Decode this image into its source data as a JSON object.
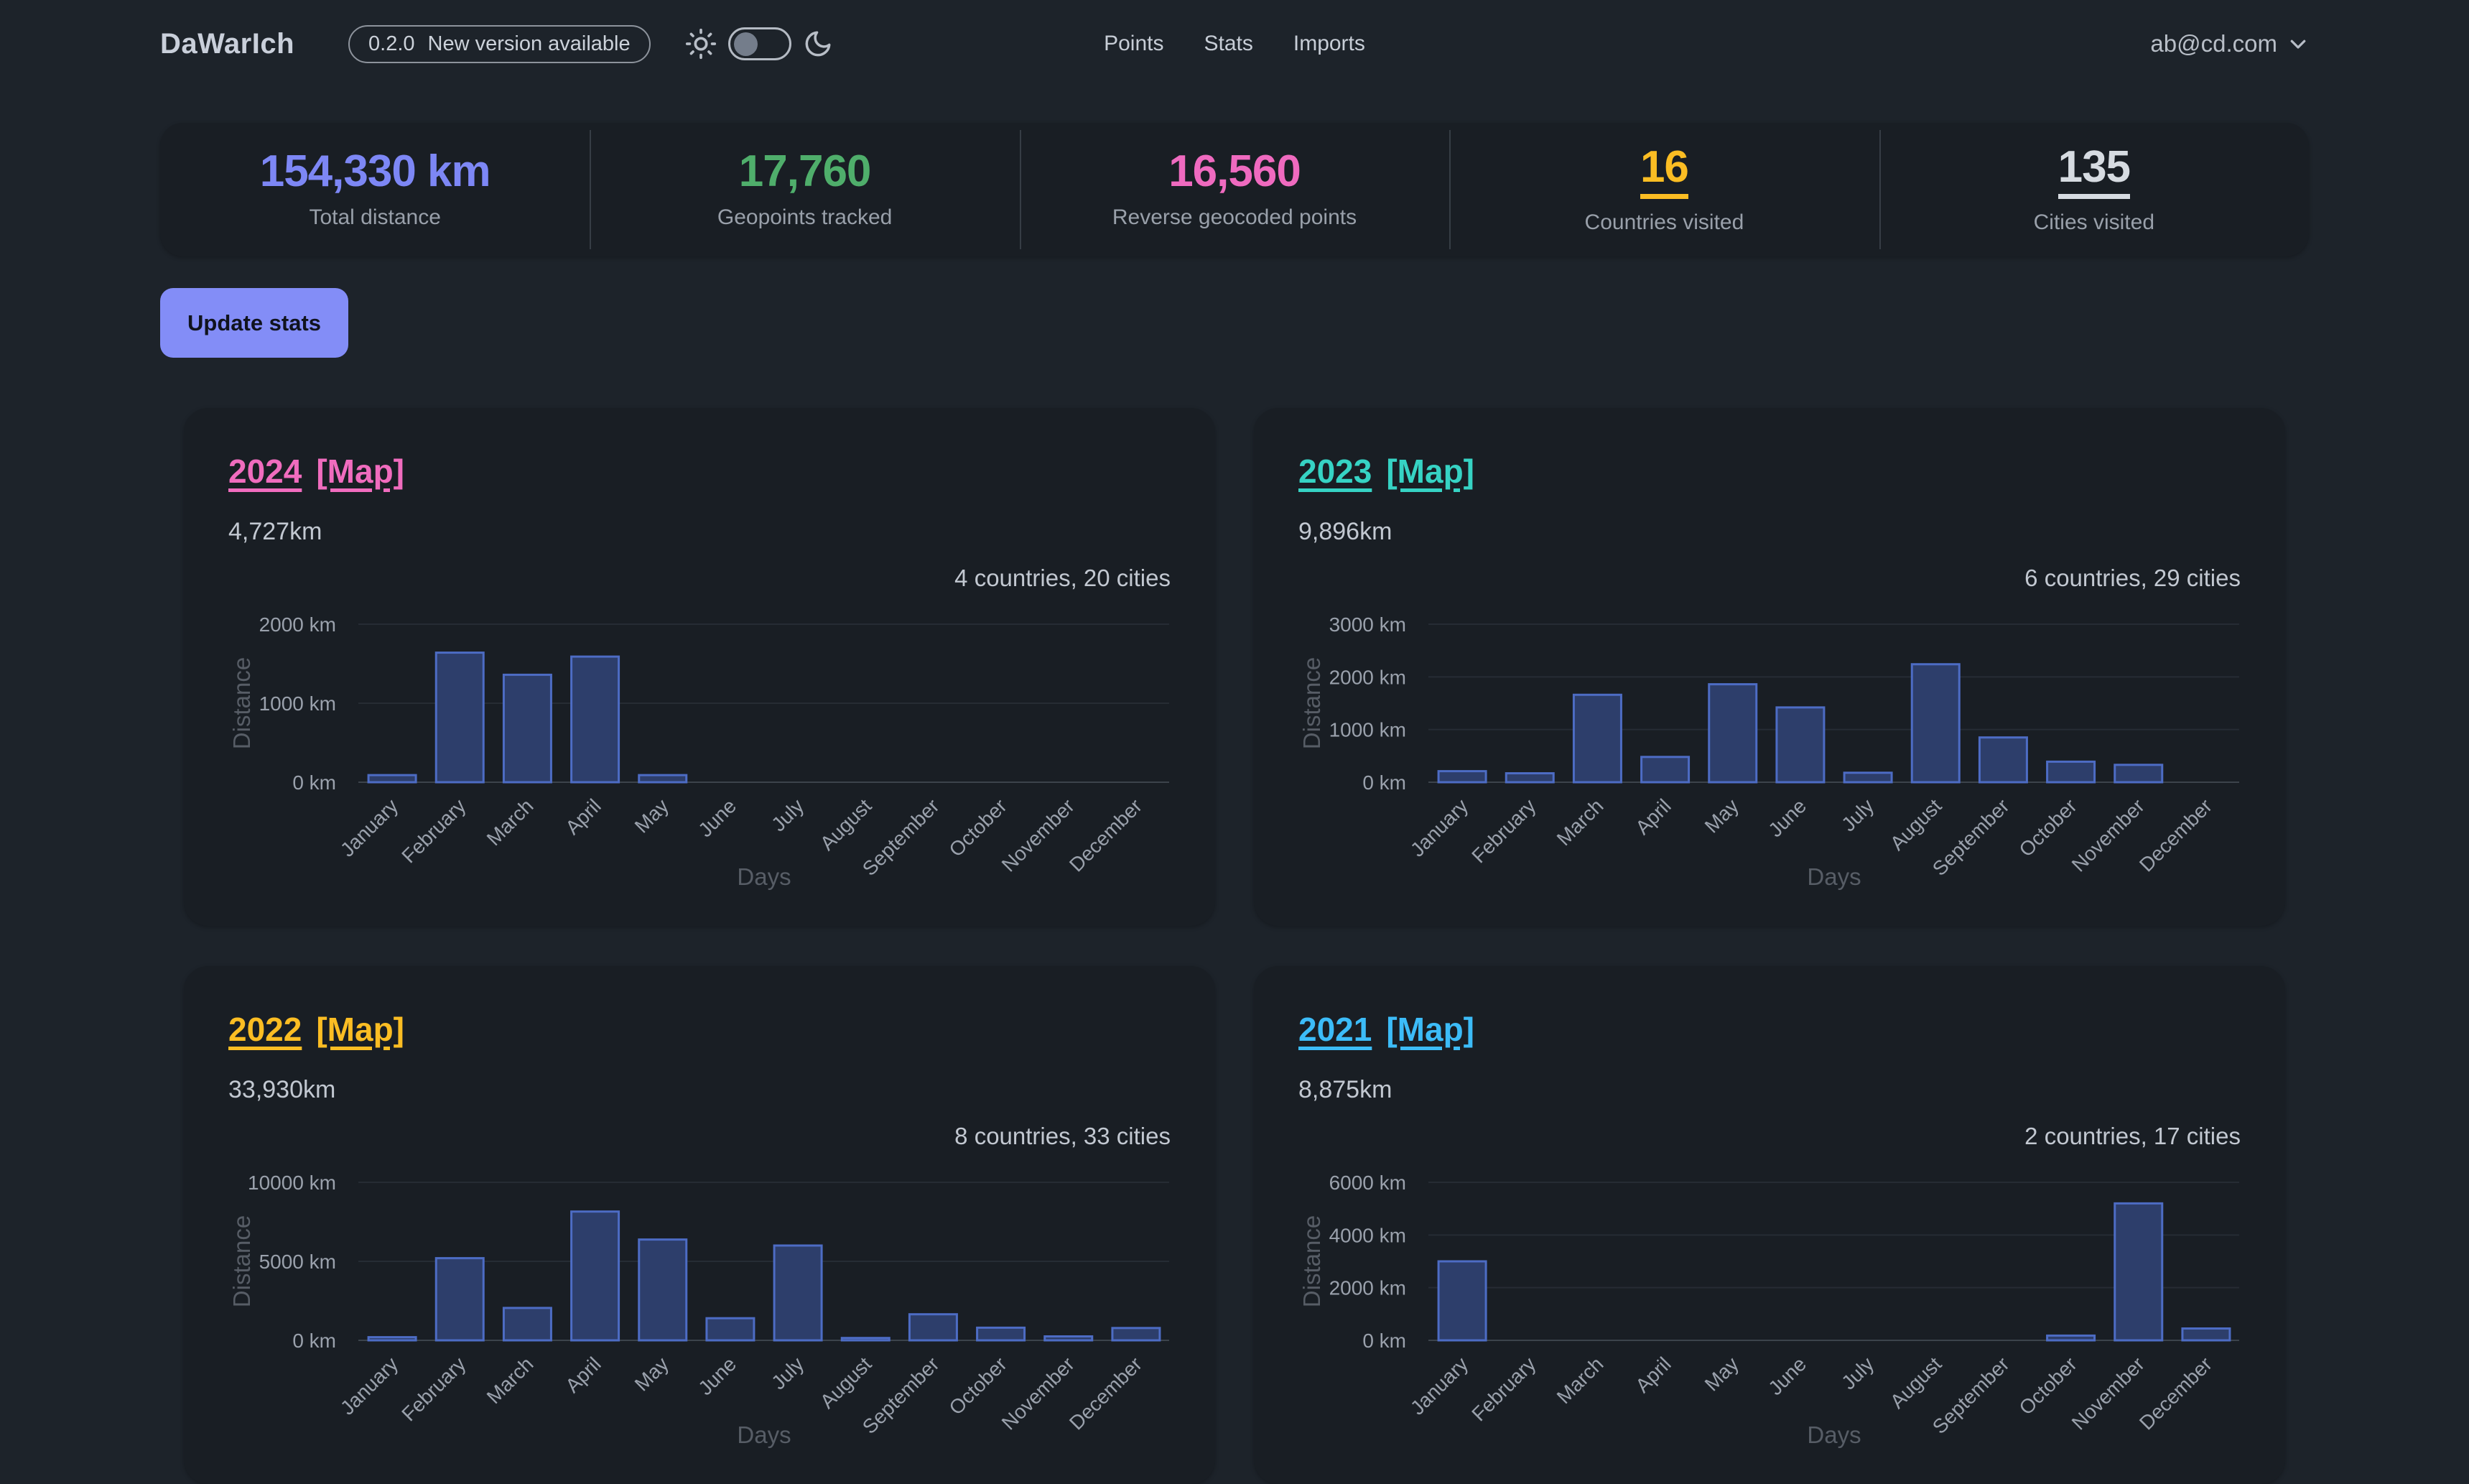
{
  "nav": {
    "brand": "DaWarIch",
    "version": "0.2.0",
    "version_note": "New version available",
    "links": [
      "Points",
      "Stats",
      "Imports"
    ],
    "user_email": "ab@cd.com",
    "icons": [
      "sun-icon",
      "moon-icon",
      "chevron-down-icon"
    ],
    "theme_toggle_state": "off"
  },
  "stats": [
    {
      "value": "154,330 km",
      "label": "Total distance",
      "color": "#7d87f5",
      "underlined": false
    },
    {
      "value": "17,760",
      "label": "Geopoints tracked",
      "color": "#4fae6b",
      "underlined": false
    },
    {
      "value": "16,560",
      "label": "Reverse geocoded points",
      "color": "#ef6abf",
      "underlined": false
    },
    {
      "value": "16",
      "label": "Countries visited",
      "color": "#fbbd23",
      "underlined": true
    },
    {
      "value": "135",
      "label": "Cities visited",
      "color": "#d6dbe1",
      "underlined": true
    }
  ],
  "actions": {
    "update_stats": "Update stats"
  },
  "theme": {
    "page_bg": "#1d232a",
    "panel_bg": "#191e24",
    "bar_fill": "#2d3e6b",
    "bar_border": "#4d6cc4",
    "grid_line": "#262c34",
    "axis_line": "#3c434b",
    "tick_text": "#9aa1ac",
    "axis_title_text": "#575d66"
  },
  "chart_data": [
    {
      "type": "bar",
      "year": "2024",
      "map_label": "[Map]",
      "year_color": "#f06cbe",
      "distance_label": "4,727km",
      "summary": "4 countries, 20 cities",
      "xlabel": "Days",
      "ylabel": "Distance",
      "categories": [
        "January",
        "February",
        "March",
        "April",
        "May",
        "June",
        "July",
        "August",
        "September",
        "October",
        "November",
        "December"
      ],
      "values": [
        90,
        1640,
        1360,
        1590,
        90,
        0,
        0,
        0,
        0,
        0,
        0,
        0
      ],
      "yticks": [
        0,
        1000,
        2000
      ],
      "ymax": 2000,
      "ytick_suffix": " km"
    },
    {
      "type": "bar",
      "year": "2023",
      "map_label": "[Map]",
      "year_color": "#36d3c4",
      "distance_label": "9,896km",
      "summary": "6 countries, 29 cities",
      "xlabel": "Days",
      "ylabel": "Distance",
      "categories": [
        "January",
        "February",
        "March",
        "April",
        "May",
        "June",
        "July",
        "August",
        "September",
        "October",
        "November",
        "December"
      ],
      "values": [
        210,
        170,
        1660,
        480,
        1860,
        1420,
        180,
        2240,
        850,
        390,
        330,
        0
      ],
      "yticks": [
        0,
        1000,
        2000,
        3000
      ],
      "ymax": 3000,
      "ytick_suffix": " km"
    },
    {
      "type": "bar",
      "year": "2022",
      "map_label": "[Map]",
      "year_color": "#fbbd23",
      "distance_label": "33,930km",
      "summary": "8 countries, 33 cities",
      "xlabel": "Days",
      "ylabel": "Distance",
      "categories": [
        "January",
        "February",
        "March",
        "April",
        "May",
        "June",
        "July",
        "August",
        "September",
        "October",
        "November",
        "December"
      ],
      "values": [
        200,
        5200,
        2050,
        8150,
        6380,
        1400,
        6000,
        150,
        1650,
        800,
        250,
        780
      ],
      "yticks": [
        0,
        5000,
        10000
      ],
      "ymax": 10000,
      "ytick_suffix": " km"
    },
    {
      "type": "bar",
      "year": "2021",
      "map_label": "[Map]",
      "year_color": "#3cbcf8",
      "distance_label": "8,875km",
      "summary": "2 countries, 17 cities",
      "xlabel": "Days",
      "ylabel": "Distance",
      "categories": [
        "January",
        "February",
        "March",
        "April",
        "May",
        "June",
        "July",
        "August",
        "September",
        "October",
        "November",
        "December"
      ],
      "values": [
        3000,
        0,
        0,
        0,
        0,
        0,
        0,
        0,
        0,
        180,
        5200,
        450
      ],
      "yticks": [
        0,
        2000,
        4000,
        6000
      ],
      "ymax": 6000,
      "ytick_suffix": " km"
    }
  ]
}
